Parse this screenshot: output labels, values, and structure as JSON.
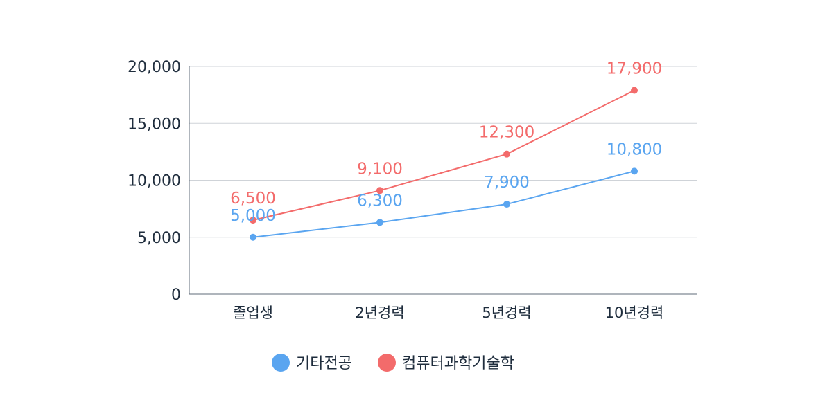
{
  "chart_data": {
    "type": "line",
    "categories": [
      "졸업생",
      "2년경력",
      "5년경력",
      "10년경력"
    ],
    "series": [
      {
        "name": "기타전공",
        "color": "#5aa5f0",
        "values": [
          5000,
          6300,
          7900,
          10800
        ]
      },
      {
        "name": "컴퓨터과학기술학",
        "color": "#f36b6b",
        "values": [
          6500,
          9100,
          12300,
          17900
        ]
      }
    ],
    "ylim": [
      0,
      20000
    ],
    "yticks": [
      0,
      5000,
      10000,
      15000,
      20000
    ],
    "ytick_labels": [
      "0",
      "5,000",
      "10,000",
      "15,000",
      "20,000"
    ],
    "data_labels": [
      [
        "5,000",
        "6,300",
        "7,900",
        "10,800"
      ],
      [
        "6,500",
        "9,100",
        "12,300",
        "17,900"
      ]
    ],
    "grid": true,
    "legend": "bottom"
  }
}
